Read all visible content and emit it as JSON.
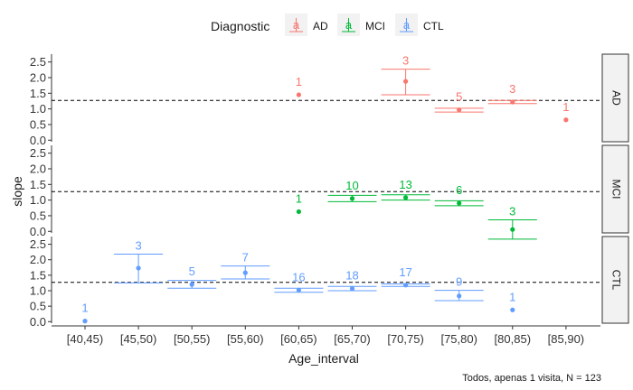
{
  "legend": {
    "title": "Diagnostic",
    "placement": "top",
    "entries": [
      {
        "label": "AD",
        "color": "#F8766D"
      },
      {
        "label": "MCI",
        "color": "#00BA38"
      },
      {
        "label": "CTL",
        "color": "#619CFF"
      }
    ],
    "key_glyph": "a"
  },
  "axes": {
    "ylabel": "slope",
    "xlabel": "Age_interval",
    "y_ticks": [
      "0.0",
      "0.5",
      "1.0",
      "1.5",
      "2.0",
      "2.5"
    ],
    "y_tick_values": [
      0,
      0.5,
      1.0,
      1.5,
      2.0,
      2.5
    ]
  },
  "caption": "Todos, apenas 1 visita, N =  123",
  "colors": {
    "panel_strip_bg": "#F2F2F2",
    "panel_strip_border": "#333333",
    "reference_line": "#000000"
  },
  "chart_data": {
    "type": "scatter",
    "style": "point with error bars and count labels, faceted by Diagnostic",
    "categories": [
      "[40,45)",
      "[45,50)",
      "[50,55)",
      "[55,60)",
      "[60,65)",
      "[65,70)",
      "[70,75)",
      "[75,80)",
      "[80,85)",
      "[85,90)"
    ],
    "ylim": [
      -0.05,
      2.75
    ],
    "reference_line": 1.27,
    "grid": false,
    "facets": [
      "AD",
      "MCI",
      "CTL"
    ],
    "series": [
      {
        "name": "AD",
        "points": [
          {
            "x": "[60,65)",
            "y": 1.45,
            "n": "1"
          },
          {
            "x": "[70,75)",
            "y": 1.88,
            "lo": 1.45,
            "hi": 2.27,
            "n": "3"
          },
          {
            "x": "[75,80)",
            "y": 0.97,
            "lo": 0.9,
            "hi": 1.02,
            "n": "5"
          },
          {
            "x": "[80,85)",
            "y": 1.22,
            "lo": 1.17,
            "hi": 1.27,
            "n": "3"
          },
          {
            "x": "[85,90)",
            "y": 0.65,
            "n": "1"
          }
        ]
      },
      {
        "name": "MCI",
        "points": [
          {
            "x": "[60,65)",
            "y": 0.63,
            "n": "1"
          },
          {
            "x": "[65,70)",
            "y": 1.05,
            "lo": 0.95,
            "hi": 1.15,
            "n": "10"
          },
          {
            "x": "[70,75)",
            "y": 1.08,
            "lo": 1.0,
            "hi": 1.17,
            "n": "13"
          },
          {
            "x": "[75,80)",
            "y": 0.9,
            "lo": 0.82,
            "hi": 0.98,
            "n": "6"
          },
          {
            "x": "[80,85)",
            "y": 0.06,
            "lo": -0.25,
            "hi": 0.37,
            "n": "3"
          }
        ]
      },
      {
        "name": "CTL",
        "points": [
          {
            "x": "[40,45)",
            "y": 0.02,
            "n": "1"
          },
          {
            "x": "[45,50)",
            "y": 1.73,
            "lo": 1.25,
            "hi": 2.18,
            "n": "3"
          },
          {
            "x": "[50,55)",
            "y": 1.2,
            "lo": 1.08,
            "hi": 1.33,
            "n": "5"
          },
          {
            "x": "[55,60)",
            "y": 1.58,
            "lo": 1.38,
            "hi": 1.8,
            "n": "7"
          },
          {
            "x": "[60,65)",
            "y": 1.02,
            "lo": 0.95,
            "hi": 1.08,
            "n": "16"
          },
          {
            "x": "[65,70)",
            "y": 1.07,
            "lo": 1.0,
            "hi": 1.14,
            "n": "18"
          },
          {
            "x": "[70,75)",
            "y": 1.18,
            "lo": 1.14,
            "hi": 1.22,
            "n": "17"
          },
          {
            "x": "[75,80)",
            "y": 0.83,
            "lo": 0.68,
            "hi": 1.01,
            "n": "9"
          },
          {
            "x": "[80,85)",
            "y": 0.38,
            "n": "1"
          }
        ]
      }
    ]
  }
}
